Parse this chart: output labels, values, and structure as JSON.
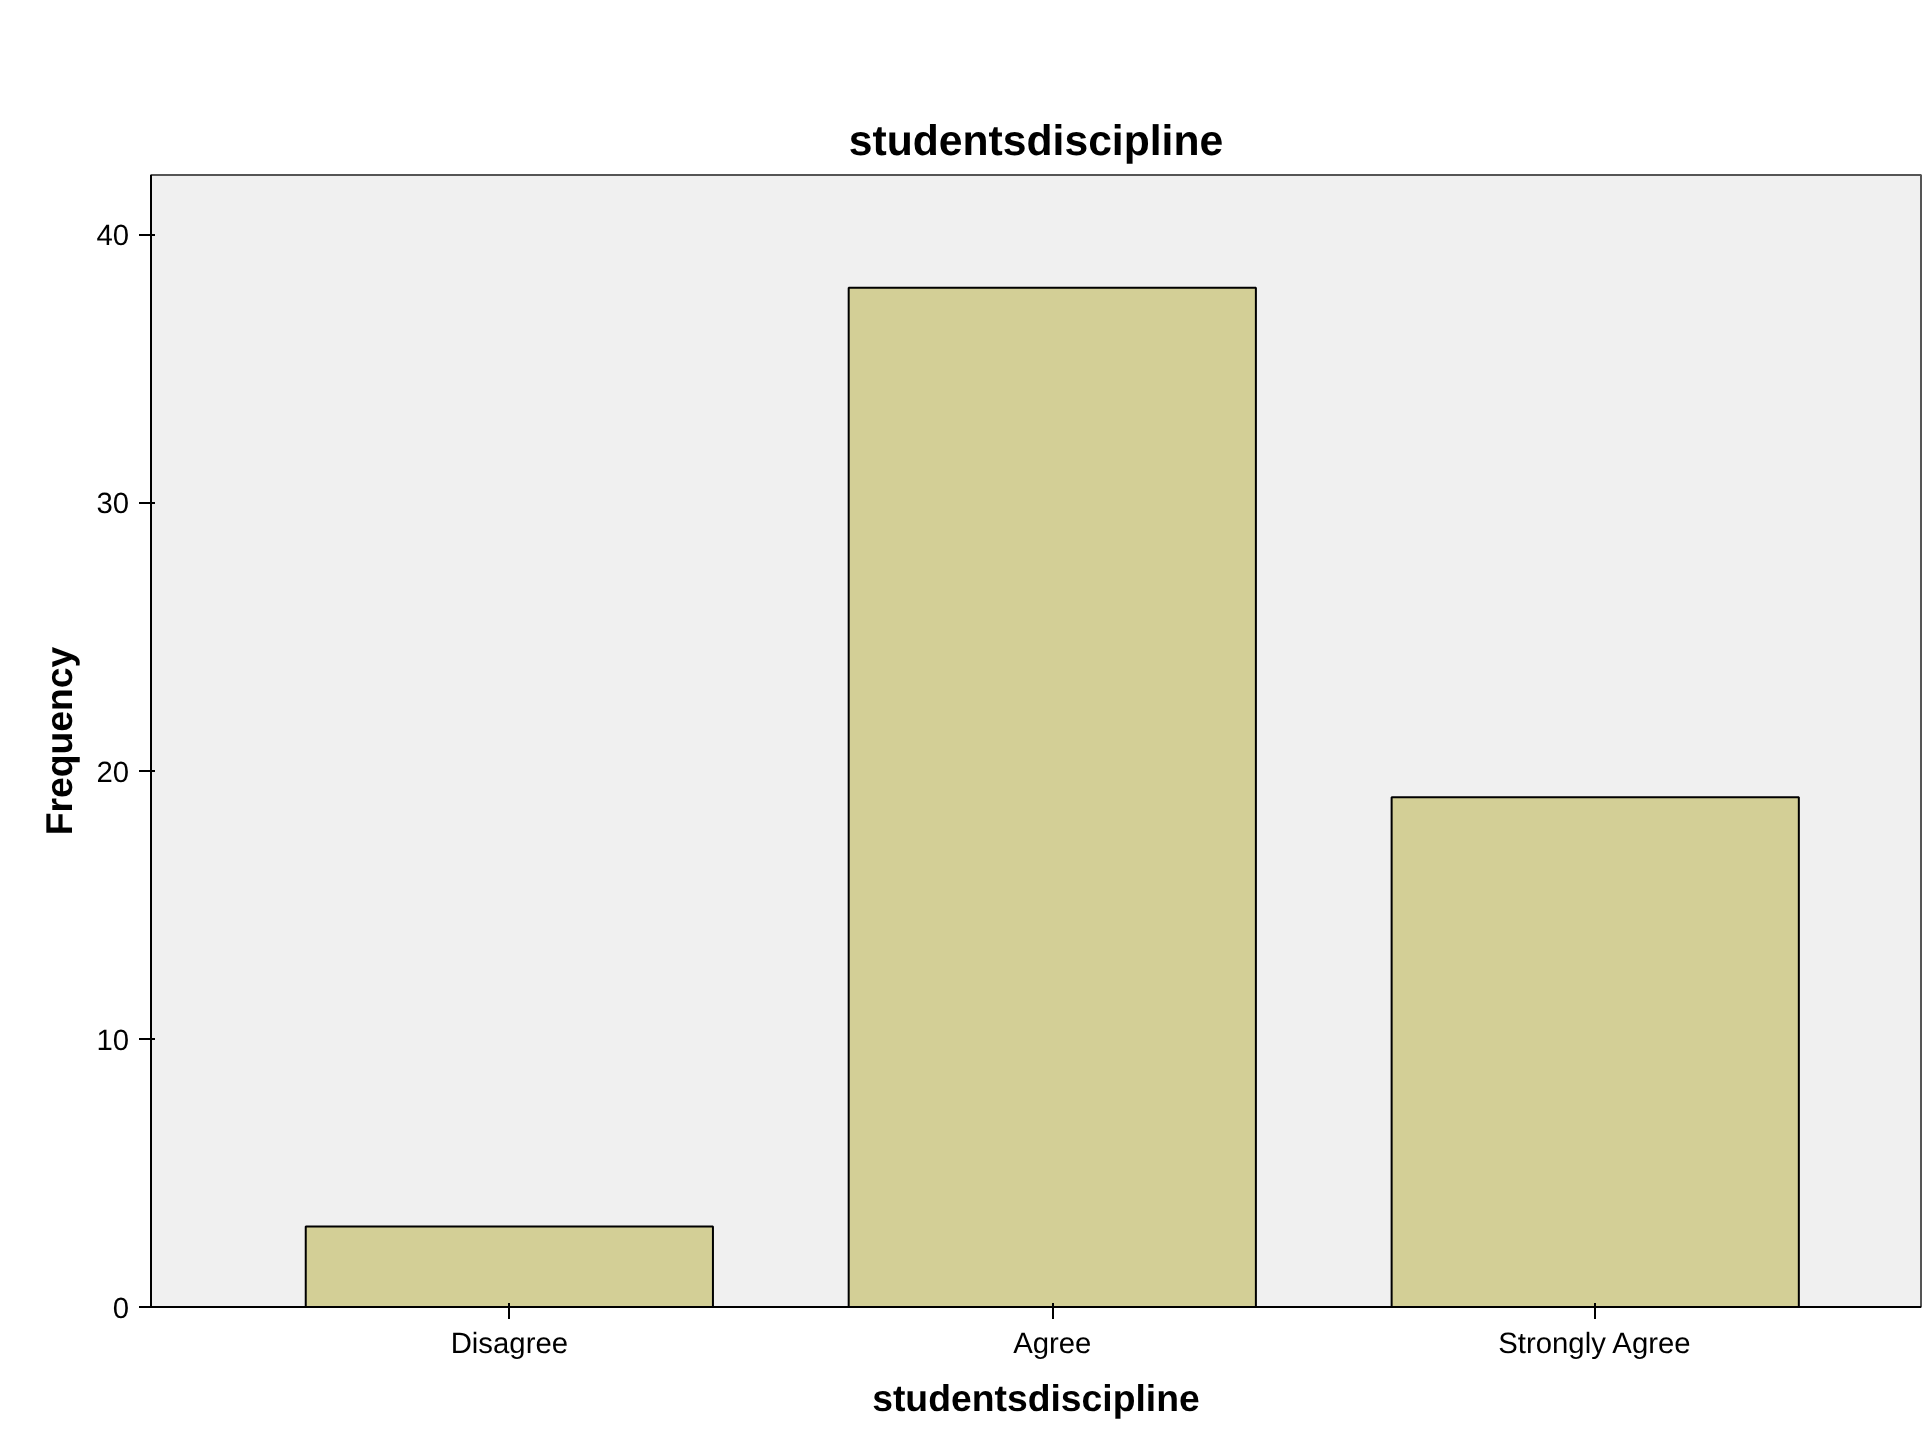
{
  "chart_data": {
    "type": "bar",
    "title": "studentsdiscipline",
    "xlabel": "studentsdiscipline",
    "ylabel": "Frequency",
    "categories": [
      "Disagree",
      "Agree",
      "Strongly Agree"
    ],
    "values": [
      3,
      38,
      19
    ],
    "color": "#d3cf96",
    "ylim": [
      0,
      42.2
    ],
    "yticks": [
      0,
      10,
      20,
      30,
      40
    ],
    "grid": false
  }
}
